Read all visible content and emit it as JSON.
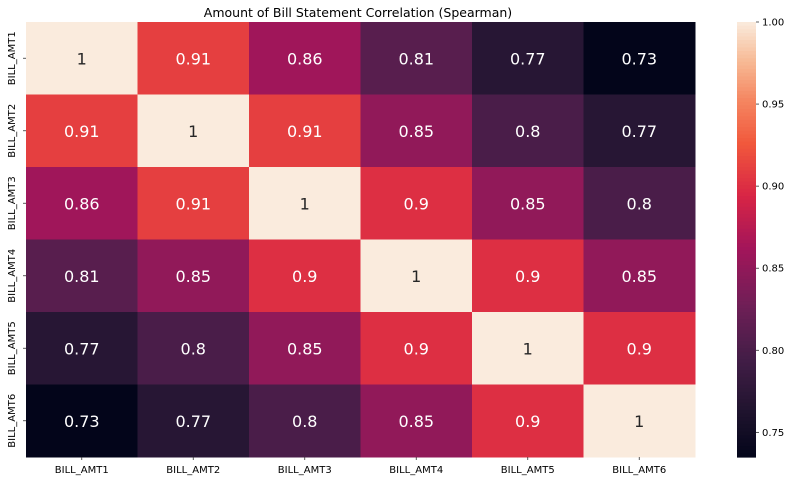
{
  "chart_data": {
    "type": "heatmap",
    "title": "Amount of Bill Statement Correlation (Spearman)",
    "xlabel": "",
    "ylabel": "",
    "x_labels": [
      "BILL_AMT1",
      "BILL_AMT2",
      "BILL_AMT3",
      "BILL_AMT4",
      "BILL_AMT5",
      "BILL_AMT6"
    ],
    "y_labels": [
      "BILL_AMT1",
      "BILL_AMT2",
      "BILL_AMT3",
      "BILL_AMT4",
      "BILL_AMT5",
      "BILL_AMT6"
    ],
    "values": [
      [
        1.0,
        0.91,
        0.86,
        0.81,
        0.77,
        0.73
      ],
      [
        0.91,
        1.0,
        0.91,
        0.85,
        0.8,
        0.77
      ],
      [
        0.86,
        0.91,
        1.0,
        0.9,
        0.85,
        0.8
      ],
      [
        0.81,
        0.85,
        0.9,
        1.0,
        0.9,
        0.85
      ],
      [
        0.77,
        0.8,
        0.85,
        0.9,
        1.0,
        0.9
      ],
      [
        0.73,
        0.77,
        0.8,
        0.85,
        0.9,
        1.0
      ]
    ],
    "annotations": [
      [
        "1",
        "0.91",
        "0.86",
        "0.81",
        "0.77",
        "0.73"
      ],
      [
        "0.91",
        "1",
        "0.91",
        "0.85",
        "0.8",
        "0.77"
      ],
      [
        "0.86",
        "0.91",
        "1",
        "0.9",
        "0.85",
        "0.8"
      ],
      [
        "0.81",
        "0.85",
        "0.9",
        "1",
        "0.9",
        "0.85"
      ],
      [
        "0.77",
        "0.8",
        "0.85",
        "0.9",
        "1",
        "0.9"
      ],
      [
        "0.73",
        "0.77",
        "0.8",
        "0.85",
        "0.9",
        "1"
      ]
    ],
    "colorbar": {
      "range": [
        0.735,
        1.0
      ],
      "ticks": [
        0.75,
        0.8,
        0.85,
        0.9,
        0.95,
        1.0
      ],
      "tick_labels": [
        "0.75",
        "0.80",
        "0.85",
        "0.90",
        "0.95",
        "1.00"
      ]
    },
    "colormap": "rocket",
    "grid": false,
    "legend": "colorbar-right"
  }
}
